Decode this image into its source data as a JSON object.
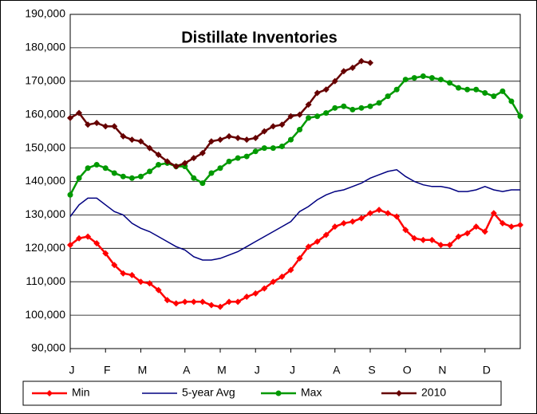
{
  "chart_data": {
    "type": "line",
    "title": "Distillate Inventories",
    "categories": [
      "J",
      null,
      null,
      null,
      "F",
      null,
      null,
      null,
      "M",
      null,
      null,
      null,
      null,
      "A",
      null,
      null,
      null,
      "M",
      null,
      null,
      null,
      "J",
      null,
      null,
      null,
      "J",
      null,
      null,
      null,
      null,
      "A",
      null,
      null,
      null,
      "S",
      null,
      null,
      null,
      "O",
      null,
      null,
      null,
      "N",
      null,
      null,
      null,
      null,
      "D",
      null,
      null,
      null,
      null
    ],
    "ylim": [
      90000,
      190000
    ],
    "yticks": [
      {
        "value": 90000,
        "label": "90,000"
      },
      {
        "value": 100000,
        "label": "100,000"
      },
      {
        "value": 110000,
        "label": "110,000"
      },
      {
        "value": 120000,
        "label": "120,000"
      },
      {
        "value": 130000,
        "label": "130,000"
      },
      {
        "value": 140000,
        "label": "140,000"
      },
      {
        "value": 150000,
        "label": "150,000"
      },
      {
        "value": 160000,
        "label": "160,000"
      },
      {
        "value": 170000,
        "label": "170,000"
      },
      {
        "value": 180000,
        "label": "180,000"
      },
      {
        "value": 190000,
        "label": "190,000"
      }
    ],
    "grid": true,
    "legend": "bottom",
    "series": [
      {
        "name": "Min",
        "color": "#ff0000",
        "marker": "diamond",
        "values": [
          121000,
          123000,
          123500,
          121500,
          118500,
          115000,
          112500,
          112000,
          110000,
          109500,
          107500,
          104500,
          103500,
          104000,
          104000,
          104000,
          103000,
          102500,
          104000,
          104000,
          105500,
          106500,
          108000,
          110000,
          111500,
          113500,
          117000,
          120500,
          122000,
          124000,
          126500,
          127500,
          128000,
          129000,
          130500,
          131500,
          130500,
          129500,
          125500,
          123000,
          122500,
          122500,
          121000,
          121000,
          123500,
          124500,
          126500,
          125000,
          130500,
          127500,
          126500,
          127000
        ]
      },
      {
        "name": "5-year Avg",
        "color": "#000080",
        "marker": null,
        "values": [
          129500,
          133000,
          135000,
          135000,
          133000,
          131000,
          130000,
          127500,
          126000,
          125000,
          123500,
          122000,
          120500,
          119500,
          117500,
          116500,
          116500,
          117000,
          118000,
          119000,
          120500,
          122000,
          123500,
          125000,
          126500,
          128000,
          131000,
          132500,
          134500,
          136000,
          137000,
          137500,
          138500,
          139500,
          141000,
          142000,
          143000,
          143500,
          141500,
          140000,
          139000,
          138500,
          138500,
          138000,
          137000,
          137000,
          137500,
          138500,
          137500,
          137000,
          137500,
          137500
        ]
      },
      {
        "name": "Max",
        "color": "#009900",
        "marker": "circle",
        "values": [
          136000,
          141000,
          144000,
          145000,
          144000,
          142500,
          141500,
          141000,
          141500,
          143000,
          145000,
          145500,
          144500,
          144500,
          141000,
          139500,
          142500,
          144000,
          146000,
          147000,
          147500,
          149000,
          150000,
          150000,
          150500,
          152500,
          155500,
          159000,
          159500,
          160500,
          162000,
          162500,
          161500,
          162000,
          162500,
          163500,
          165500,
          167500,
          170500,
          171000,
          171500,
          171000,
          170500,
          169500,
          168000,
          167500,
          167500,
          166500,
          165500,
          167000,
          164000,
          159500
        ]
      },
      {
        "name": "2010",
        "color": "#660000",
        "marker": "diamond",
        "values": [
          159000,
          160500,
          157000,
          157500,
          156500,
          156500,
          153500,
          152500,
          152000,
          150000,
          148000,
          146000,
          144500,
          145500,
          147000,
          148500,
          152000,
          152500,
          153500,
          153000,
          152500,
          153000,
          155000,
          156500,
          157000,
          159500,
          160000,
          163000,
          166500,
          167500,
          170000,
          173000,
          174000,
          176000,
          175500,
          null,
          null,
          null,
          null,
          null,
          null,
          null,
          null,
          null,
          null,
          null,
          null,
          null,
          null,
          null,
          null,
          null
        ]
      }
    ]
  }
}
